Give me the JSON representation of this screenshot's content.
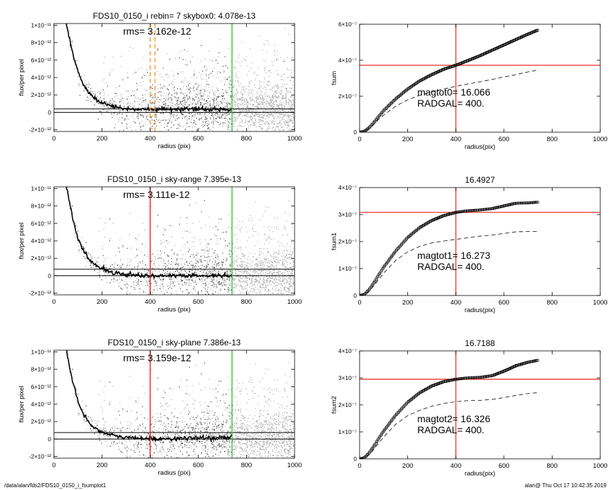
{
  "footer": {
    "left": "/data/alan/fds2/FDS10_0150_i_fsumplot1",
    "right": "alan@  Thu Oct 17 10:42:35 2019"
  },
  "colors": {
    "scatter": "#a8a8a8",
    "profile": "#000000",
    "red": "#e8302a",
    "green": "#37c837",
    "orange": "#e8962a"
  },
  "chart_data": [
    {
      "panel": "left-1",
      "type": "scatter",
      "title": "FDS10_0150_i rebin= 7    skybox0:  4.078e-13",
      "annotation": "rms= 3.162e-12",
      "xlabel": "radius (pix)",
      "ylabel": "flux/per pixel",
      "xlim": [
        0,
        1000
      ],
      "ylim": [
        -2.2e-12,
        1.02e-11
      ],
      "x_ticks": [
        0,
        200,
        400,
        600,
        800,
        1000
      ],
      "x_tick_labels": [
        "0",
        "200",
        "400",
        "600",
        "800",
        "1000"
      ],
      "y_ticks": [
        -2e-12,
        0,
        2e-12,
        4e-12,
        6e-12,
        8e-12,
        1e-11
      ],
      "y_tick_labels": [
        "-2×10⁻¹²",
        "0",
        "2×10⁻¹²",
        "4×10⁻¹²",
        "6×10⁻¹²",
        "8×10⁻¹²",
        "1×10⁻¹¹"
      ],
      "hlines": [
        0,
        4.078e-13
      ],
      "vlines": [
        {
          "x": 400,
          "color": "orange",
          "dashed": true
        },
        {
          "x": 420,
          "color": "orange",
          "dashed": true
        },
        {
          "x": 740,
          "color": "green",
          "dashed": false
        }
      ],
      "profile": {
        "x": [
          50,
          60,
          80,
          100,
          120,
          140,
          160,
          180,
          200,
          230,
          260,
          300,
          350,
          400,
          450,
          500,
          550,
          600,
          650,
          700,
          740
        ],
        "y": [
          1.05e-11,
          9e-12,
          6.5e-12,
          4.6e-12,
          3.3e-12,
          2.4e-12,
          1.8e-12,
          1.4e-12,
          1.1e-12,
          8e-13,
          6e-13,
          4.5e-13,
          3.5e-13,
          3e-13,
          3.2e-13,
          3.3e-13,
          3.4e-13,
          3.3e-13,
          3.3e-13,
          3.5e-13,
          3.5e-13
        ]
      }
    },
    {
      "panel": "right-1",
      "type": "line",
      "title": "",
      "xlabel": "radius(pix)",
      "ylabel": "fsum",
      "xlim": [
        0,
        1000
      ],
      "ylim": [
        0,
        6e-07
      ],
      "x_ticks": [
        0,
        200,
        400,
        600,
        800,
        1000
      ],
      "x_tick_labels": [
        "0",
        "200",
        "400",
        "600",
        "800",
        "1000"
      ],
      "y_ticks": [
        0,
        2e-07,
        4e-07,
        6e-07
      ],
      "y_tick_labels": [
        "0",
        "2×10⁻⁷",
        "4×10⁻⁷",
        "6×10⁻⁷"
      ],
      "annotations": [
        "magtot0=  16.066",
        "RADGAL=    400."
      ],
      "crosshair": {
        "x": 400,
        "y": 3.72e-07
      },
      "series": [
        {
          "style": "squares",
          "x": [
            0,
            20,
            40,
            60,
            80,
            100,
            150,
            200,
            250,
            300,
            350,
            400,
            450,
            500,
            550,
            600,
            650,
            700,
            740
          ],
          "y": [
            0,
            5e-09,
            2.5e-08,
            5.5e-08,
            8.8e-08,
            1.2e-07,
            1.85e-07,
            2.4e-07,
            2.85e-07,
            3.2e-07,
            3.5e-07,
            3.72e-07,
            3.98e-07,
            4.25e-07,
            4.55e-07,
            4.85e-07,
            5.15e-07,
            5.45e-07,
            5.67e-07
          ]
        },
        {
          "style": "dashed",
          "x": [
            0,
            20,
            40,
            60,
            80,
            100,
            150,
            200,
            250,
            300,
            350,
            400,
            450,
            500,
            550,
            600,
            650,
            700,
            740
          ],
          "y": [
            0,
            4e-09,
            2e-08,
            4.5e-08,
            7.2e-08,
            9.5e-08,
            1.45e-07,
            1.8e-07,
            2.05e-07,
            2.25e-07,
            2.4e-07,
            2.55e-07,
            2.68e-07,
            2.8e-07,
            2.93e-07,
            3.07e-07,
            3.2e-07,
            3.35e-07,
            3.45e-07
          ]
        }
      ]
    },
    {
      "panel": "left-2",
      "type": "scatter",
      "title": "FDS10_0150_i sky-range  7.395e-13",
      "annotation": "rms= 3.111e-12",
      "xlabel": "radius (pix)",
      "ylabel": "flux/per pixel",
      "xlim": [
        0,
        1000
      ],
      "ylim": [
        -2.2e-12,
        1.02e-11
      ],
      "x_ticks": [
        0,
        200,
        400,
        600,
        800,
        1000
      ],
      "x_tick_labels": [
        "0",
        "200",
        "400",
        "600",
        "800",
        "1000"
      ],
      "y_ticks": [
        -2e-12,
        0,
        2e-12,
        4e-12,
        6e-12,
        8e-12,
        1e-11
      ],
      "y_tick_labels": [
        "-2×10⁻¹²",
        "0",
        "2×10⁻¹²",
        "4×10⁻¹²",
        "6×10⁻¹²",
        "8×10⁻¹²",
        "1×10⁻¹¹"
      ],
      "hlines": [
        0,
        7.395e-13
      ],
      "vlines": [
        {
          "x": 400,
          "color": "red",
          "dashed": false
        },
        {
          "x": 740,
          "color": "green",
          "dashed": false
        }
      ],
      "profile": {
        "x": [
          50,
          60,
          80,
          100,
          120,
          140,
          160,
          180,
          200,
          230,
          260,
          300,
          350,
          400,
          450,
          500,
          550,
          600,
          650,
          700,
          740
        ],
        "y": [
          1.05e-11,
          9e-12,
          6.3e-12,
          4.3e-12,
          3e-12,
          2.1e-12,
          1.5e-12,
          1.1e-12,
          8e-13,
          5e-13,
          3e-13,
          1.5e-13,
          5e-14,
          1e-14,
          -3e-14,
          0,
          -2e-14,
          -1e-14,
          0,
          1e-14,
          0
        ]
      }
    },
    {
      "panel": "right-2",
      "type": "line",
      "title": "16.4927",
      "xlabel": "radius(pix)",
      "ylabel": "fsum1",
      "xlim": [
        0,
        1000
      ],
      "ylim": [
        0,
        4e-07
      ],
      "x_ticks": [
        0,
        200,
        400,
        600,
        800,
        1000
      ],
      "x_tick_labels": [
        "0",
        "200",
        "400",
        "600",
        "800",
        "1000"
      ],
      "y_ticks": [
        0,
        1e-07,
        2e-07,
        3e-07,
        4e-07
      ],
      "y_tick_labels": [
        "0",
        "1×10⁻⁷",
        "2×10⁻⁷",
        "3×10⁻⁷",
        "4×10⁻⁷"
      ],
      "annotations": [
        "magtot1=  16.273",
        "RADGAL=    400."
      ],
      "crosshair": {
        "x": 400,
        "y": 3.08e-07
      },
      "series": [
        {
          "style": "squares",
          "x": [
            0,
            20,
            40,
            60,
            80,
            100,
            150,
            200,
            250,
            300,
            350,
            400,
            450,
            500,
            550,
            600,
            650,
            700,
            740
          ],
          "y": [
            0,
            4e-09,
            2.2e-08,
            4.8e-08,
            7.7e-08,
            1.05e-07,
            1.65e-07,
            2.15e-07,
            2.52e-07,
            2.78e-07,
            2.96e-07,
            3.08e-07,
            3.14e-07,
            3.17e-07,
            3.22e-07,
            3.32e-07,
            3.42e-07,
            3.43e-07,
            3.46e-07
          ]
        },
        {
          "style": "dashed",
          "x": [
            0,
            20,
            40,
            60,
            80,
            100,
            150,
            200,
            250,
            300,
            350,
            400,
            450,
            500,
            550,
            600,
            650,
            700,
            740
          ],
          "y": [
            0,
            3e-09,
            1.7e-08,
            3.7e-08,
            6e-08,
            8.3e-08,
            1.3e-07,
            1.62e-07,
            1.82e-07,
            1.95e-07,
            2.02e-07,
            2.08e-07,
            2.14e-07,
            2.2e-07,
            2.24e-07,
            2.3e-07,
            2.36e-07,
            2.37e-07,
            2.37e-07
          ]
        }
      ]
    },
    {
      "panel": "left-3",
      "type": "scatter",
      "title": "FDS10_0150_i sky-plane  7.386e-13",
      "annotation": "rms= 3.159e-12",
      "xlabel": "radius (pix)",
      "ylabel": "flux/per pixel",
      "xlim": [
        0,
        1000
      ],
      "ylim": [
        -2.2e-12,
        1.02e-11
      ],
      "x_ticks": [
        0,
        200,
        400,
        600,
        800,
        1000
      ],
      "x_tick_labels": [
        "0",
        "200",
        "400",
        "600",
        "800",
        "1000"
      ],
      "y_ticks": [
        -2e-12,
        0,
        2e-12,
        4e-12,
        6e-12,
        8e-12,
        1e-11
      ],
      "y_tick_labels": [
        "-2×10⁻¹²",
        "0",
        "2×10⁻¹²",
        "4×10⁻¹²",
        "6×10⁻¹²",
        "8×10⁻¹²",
        "1×10⁻¹¹"
      ],
      "hlines": [
        0,
        7.386e-13
      ],
      "vlines": [
        {
          "x": 400,
          "color": "red",
          "dashed": false
        },
        {
          "x": 740,
          "color": "green",
          "dashed": false
        }
      ],
      "profile": {
        "x": [
          50,
          60,
          80,
          100,
          120,
          140,
          160,
          180,
          200,
          230,
          260,
          300,
          350,
          400,
          450,
          500,
          550,
          600,
          650,
          700,
          740
        ],
        "y": [
          1.05e-11,
          9e-12,
          6.3e-12,
          4.3e-12,
          3e-12,
          2.1e-12,
          1.5e-12,
          1.1e-12,
          8e-13,
          5e-13,
          3e-13,
          1.8e-13,
          1e-13,
          5e-14,
          3e-14,
          5e-14,
          8e-14,
          1e-13,
          1.2e-13,
          1.5e-13,
          1.5e-13
        ]
      }
    },
    {
      "panel": "right-3",
      "type": "line",
      "title": "16.7188",
      "xlabel": "radius(pix)",
      "ylabel": "fsum2",
      "xlim": [
        0,
        1000
      ],
      "ylim": [
        0,
        4e-07
      ],
      "x_ticks": [
        0,
        200,
        400,
        600,
        800,
        1000
      ],
      "x_tick_labels": [
        "0",
        "200",
        "400",
        "600",
        "800",
        "1000"
      ],
      "y_ticks": [
        0,
        1e-07,
        2e-07,
        3e-07,
        4e-07
      ],
      "y_tick_labels": [
        "0",
        "1×10⁻⁷",
        "2×10⁻⁷",
        "3×10⁻⁷",
        "4×10⁻⁷"
      ],
      "annotations": [
        "magtot2=  16.326",
        "RADGAL=    400."
      ],
      "crosshair": {
        "x": 400,
        "y": 2.95e-07
      },
      "series": [
        {
          "style": "squares",
          "x": [
            0,
            20,
            40,
            60,
            80,
            100,
            150,
            200,
            250,
            300,
            350,
            400,
            450,
            500,
            550,
            600,
            650,
            700,
            740
          ],
          "y": [
            0,
            4e-09,
            2.2e-08,
            4.8e-08,
            7.6e-08,
            1.03e-07,
            1.62e-07,
            2.1e-07,
            2.45e-07,
            2.7e-07,
            2.86e-07,
            2.95e-07,
            3e-07,
            3.02e-07,
            3.08e-07,
            3.25e-07,
            3.45e-07,
            3.58e-07,
            3.65e-07
          ]
        },
        {
          "style": "dashed",
          "x": [
            0,
            20,
            40,
            60,
            80,
            100,
            150,
            200,
            250,
            300,
            350,
            400,
            450,
            500,
            550,
            600,
            650,
            700,
            740
          ],
          "y": [
            0,
            3e-09,
            1.7e-08,
            3.6e-08,
            5.9e-08,
            8.1e-08,
            1.28e-07,
            1.6e-07,
            1.8e-07,
            1.95e-07,
            2.05e-07,
            2.12e-07,
            2.16e-07,
            2.17e-07,
            2.2e-07,
            2.27e-07,
            2.35e-07,
            2.42e-07,
            2.45e-07
          ]
        }
      ]
    }
  ]
}
